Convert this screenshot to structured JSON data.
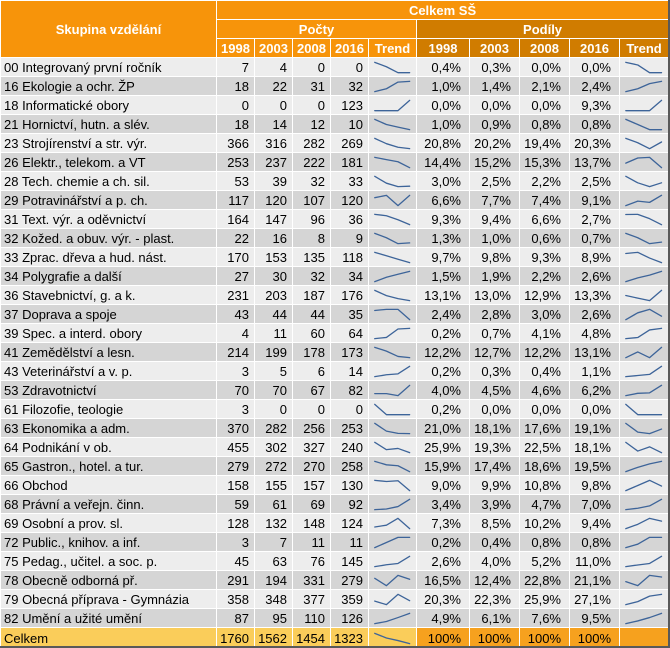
{
  "colors": {
    "header_orange": "#F7940A",
    "podily_orange": "#D07C00",
    "row_light": "#EDEDED",
    "row_dark": "#D5D5D5",
    "total_yellow": "#FACD5A",
    "total_orange": "#F6A11E",
    "sparkline": "#3D6499"
  },
  "chart_data": {
    "type": "table",
    "title": "Celkem SŠ",
    "row_header": "Skupina vzdělání",
    "sections": [
      "Počty",
      "Podíly"
    ],
    "years": [
      "1998",
      "2003",
      "2008",
      "2016"
    ],
    "trend_label": "Trend",
    "rows": [
      {
        "label": "00 Integrovaný první ročník",
        "counts": [
          7,
          4,
          0,
          0
        ],
        "shares": [
          "0,4%",
          "0,3%",
          "0,0%",
          "0,0%"
        ]
      },
      {
        "label": "16 Ekologie a ochr. ŽP",
        "counts": [
          18,
          22,
          31,
          32
        ],
        "shares": [
          "1,0%",
          "1,4%",
          "2,1%",
          "2,4%"
        ]
      },
      {
        "label": "18 Informatické obory",
        "counts": [
          0,
          0,
          0,
          123
        ],
        "shares": [
          "0,0%",
          "0,0%",
          "0,0%",
          "9,3%"
        ]
      },
      {
        "label": "21 Hornictví, hutn. a slév.",
        "counts": [
          18,
          14,
          12,
          10
        ],
        "shares": [
          "1,0%",
          "0,9%",
          "0,8%",
          "0,8%"
        ]
      },
      {
        "label": "23 Strojírenství a str. výr.",
        "counts": [
          366,
          316,
          282,
          269
        ],
        "shares": [
          "20,8%",
          "20,2%",
          "19,4%",
          "20,3%"
        ]
      },
      {
        "label": "26 Elektr., telekom. a VT",
        "counts": [
          253,
          237,
          222,
          181
        ],
        "shares": [
          "14,4%",
          "15,2%",
          "15,3%",
          "13,7%"
        ]
      },
      {
        "label": "28 Tech. chemie a ch. sil.",
        "counts": [
          53,
          39,
          32,
          33
        ],
        "shares": [
          "3,0%",
          "2,5%",
          "2,2%",
          "2,5%"
        ]
      },
      {
        "label": "29 Potravinářství a p. ch.",
        "counts": [
          117,
          120,
          107,
          120
        ],
        "shares": [
          "6,6%",
          "7,7%",
          "7,4%",
          "9,1%"
        ]
      },
      {
        "label": "31 Text. výr. a oděvnictví",
        "counts": [
          164,
          147,
          96,
          36
        ],
        "shares": [
          "9,3%",
          "9,4%",
          "6,6%",
          "2,7%"
        ]
      },
      {
        "label": "32 Kožed. a obuv. výr. - plast.",
        "counts": [
          22,
          16,
          8,
          9
        ],
        "shares": [
          "1,3%",
          "1,0%",
          "0,6%",
          "0,7%"
        ]
      },
      {
        "label": "33 Zprac. dřeva a hud. nást.",
        "counts": [
          170,
          153,
          135,
          118
        ],
        "shares": [
          "9,7%",
          "9,8%",
          "9,3%",
          "8,9%"
        ]
      },
      {
        "label": "34 Polygrafie a další",
        "counts": [
          27,
          30,
          32,
          34
        ],
        "shares": [
          "1,5%",
          "1,9%",
          "2,2%",
          "2,6%"
        ]
      },
      {
        "label": "36 Stavebnictví, g. a k.",
        "counts": [
          231,
          203,
          187,
          176
        ],
        "shares": [
          "13,1%",
          "13,0%",
          "12,9%",
          "13,3%"
        ]
      },
      {
        "label": "37 Doprava a spoje",
        "counts": [
          43,
          44,
          44,
          35
        ],
        "shares": [
          "2,4%",
          "2,8%",
          "3,0%",
          "2,6%"
        ]
      },
      {
        "label": "39 Spec. a interd. obory",
        "counts": [
          4,
          11,
          60,
          64
        ],
        "shares": [
          "0,2%",
          "0,7%",
          "4,1%",
          "4,8%"
        ]
      },
      {
        "label": "41 Zemědělství a lesn.",
        "counts": [
          214,
          199,
          178,
          173
        ],
        "shares": [
          "12,2%",
          "12,7%",
          "12,2%",
          "13,1%"
        ]
      },
      {
        "label": "43 Veterinářství a v. p.",
        "counts": [
          3,
          5,
          6,
          14
        ],
        "shares": [
          "0,2%",
          "0,3%",
          "0,4%",
          "1,1%"
        ]
      },
      {
        "label": "53 Zdravotnictví",
        "counts": [
          70,
          70,
          67,
          82
        ],
        "shares": [
          "4,0%",
          "4,5%",
          "4,6%",
          "6,2%"
        ]
      },
      {
        "label": "61 Filozofie, teologie",
        "counts": [
          3,
          0,
          0,
          0
        ],
        "shares": [
          "0,2%",
          "0,0%",
          "0,0%",
          "0,0%"
        ]
      },
      {
        "label": "63 Ekonomika a adm.",
        "counts": [
          370,
          282,
          256,
          253
        ],
        "shares": [
          "21,0%",
          "18,1%",
          "17,6%",
          "19,1%"
        ]
      },
      {
        "label": "64 Podnikání v ob.",
        "counts": [
          455,
          302,
          327,
          240
        ],
        "shares": [
          "25,9%",
          "19,3%",
          "22,5%",
          "18,1%"
        ]
      },
      {
        "label": "65 Gastron., hotel. a tur.",
        "counts": [
          279,
          272,
          270,
          258
        ],
        "shares": [
          "15,9%",
          "17,4%",
          "18,6%",
          "19,5%"
        ]
      },
      {
        "label": "66 Obchod",
        "counts": [
          158,
          155,
          157,
          130
        ],
        "shares": [
          "9,0%",
          "9,9%",
          "10,8%",
          "9,8%"
        ]
      },
      {
        "label": "68 Právní a veřejn. činn.",
        "counts": [
          59,
          61,
          69,
          92
        ],
        "shares": [
          "3,4%",
          "3,9%",
          "4,7%",
          "7,0%"
        ]
      },
      {
        "label": "69 Osobní a prov. sl.",
        "counts": [
          128,
          132,
          148,
          124
        ],
        "shares": [
          "7,3%",
          "8,5%",
          "10,2%",
          "9,4%"
        ]
      },
      {
        "label": "72 Public., knihov. a inf.",
        "counts": [
          3,
          7,
          11,
          11
        ],
        "shares": [
          "0,2%",
          "0,4%",
          "0,8%",
          "0,8%"
        ]
      },
      {
        "label": "75 Pedag., učitel. a soc. p.",
        "counts": [
          45,
          63,
          76,
          145
        ],
        "shares": [
          "2,6%",
          "4,0%",
          "5,2%",
          "11,0%"
        ]
      },
      {
        "label": "78 Obecně odborná př.",
        "counts": [
          291,
          194,
          331,
          279
        ],
        "shares": [
          "16,5%",
          "12,4%",
          "22,8%",
          "21,1%"
        ]
      },
      {
        "label": "79 Obecná příprava - Gymnázia",
        "counts": [
          358,
          348,
          377,
          359
        ],
        "shares": [
          "20,3%",
          "22,3%",
          "25,9%",
          "27,1%"
        ]
      },
      {
        "label": "82 Umění a užité umění",
        "counts": [
          87,
          95,
          110,
          126
        ],
        "shares": [
          "4,9%",
          "6,1%",
          "7,6%",
          "9,5%"
        ]
      }
    ],
    "total": {
      "label": "Celkem",
      "counts": [
        1760,
        1562,
        1454,
        1323
      ],
      "shares": [
        "100%",
        "100%",
        "100%",
        "100%"
      ]
    }
  }
}
